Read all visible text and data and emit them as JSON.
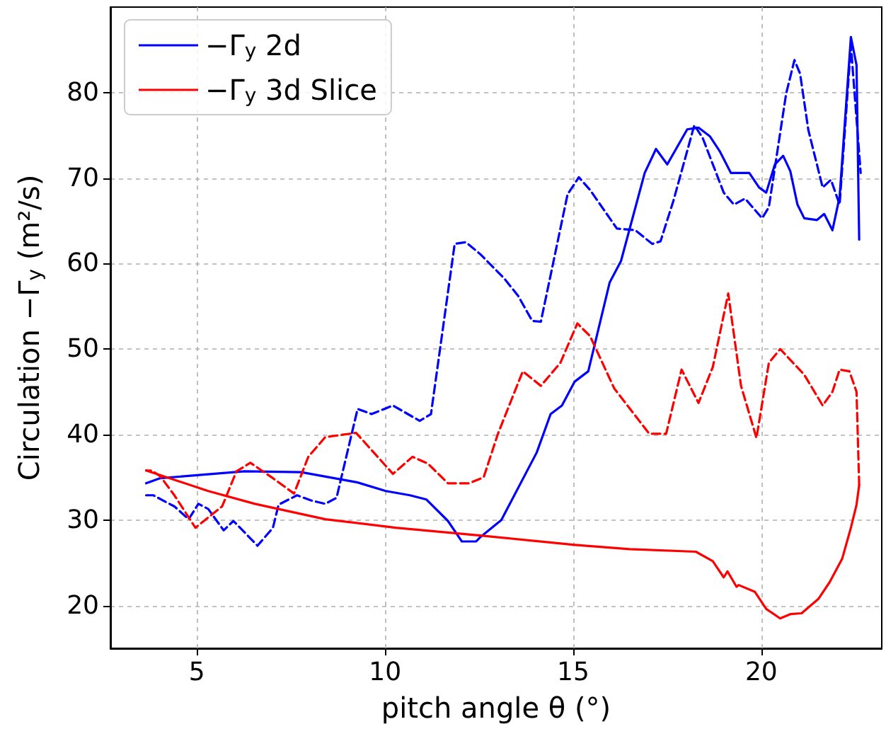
{
  "chart_data": {
    "type": "line",
    "xlabel": "pitch angle θ (°)",
    "ylabel": "Circulation −Γ$_{y}$ (m²/s)",
    "xlim": [
      2.7,
      23.2
    ],
    "ylim": [
      15,
      90
    ],
    "xticks": [
      5,
      10,
      15,
      20
    ],
    "yticks": [
      20,
      30,
      40,
      50,
      60,
      70,
      80
    ],
    "grid": true,
    "legend": "top left",
    "marker": "none",
    "line_style": "solid",
    "series": [
      {
        "name": "−Γ$_{y}$ 2d",
        "color": "#0000ff",
        "x": [
          3.65,
          4.03,
          6.27,
          7.77,
          9.27,
          10.02,
          10.66,
          11.1,
          11.67,
          12.04,
          12.42,
          12.53,
          13.09,
          14.03,
          14.4,
          14.7,
          15.04,
          15.4,
          15.97,
          16.27,
          16.9,
          17.2,
          17.5,
          18.03,
          18.33,
          18.63,
          18.9,
          19.19,
          19.68,
          19.94,
          20.13,
          20.36,
          20.58,
          20.77,
          20.96,
          21.14,
          21.48,
          21.67,
          21.89,
          22.08,
          22.38,
          22.53,
          22.6
        ],
        "values": [
          34.3,
          34.9,
          35.7,
          35.6,
          34.4,
          33.4,
          32.9,
          32.4,
          29.9,
          27.5,
          27.5,
          28,
          30,
          37.9,
          42.4,
          43.4,
          46.2,
          47.4,
          57.8,
          60.3,
          70.6,
          73.4,
          71.6,
          75.7,
          75.9,
          74.9,
          73.1,
          70.6,
          70.6,
          68.9,
          68.3,
          71.6,
          72.6,
          70.8,
          66.9,
          65.3,
          65.1,
          65.8,
          63.9,
          67.8,
          86.5,
          83.2,
          62.8
        ]
      },
      {
        "color": "#0000ff",
        "line_style": "dashed",
        "x": [
          3.65,
          3.84,
          4.18,
          4.4,
          4.78,
          5.04,
          5.3,
          5.71,
          5.97,
          6.61,
          7.02,
          7.17,
          7.66,
          8.03,
          8.41,
          8.71,
          9.27,
          9.64,
          10.21,
          10.92,
          11.22,
          11.85,
          12.15,
          12.53,
          13.16,
          13.54,
          13.91,
          14.14,
          14.85,
          15.15,
          15.45,
          16.16,
          16.65,
          17.1,
          17.32,
          17.66,
          18.22,
          18.44,
          19.0,
          19.27,
          19.57,
          20.02,
          20.2,
          20.66,
          20.88,
          21.03,
          21.25,
          21.63,
          21.85,
          22.08,
          22.38,
          22.64
        ],
        "values": [
          32.9,
          32.9,
          32.1,
          31.6,
          30.1,
          31.9,
          31.3,
          28.8,
          29.9,
          27,
          29.1,
          31.8,
          32.9,
          32.3,
          31.9,
          32.6,
          43,
          42.4,
          43.4,
          41.6,
          42.4,
          62.3,
          62.5,
          61.1,
          58.3,
          56.2,
          53.3,
          53.2,
          68.1,
          70.1,
          68.6,
          64.1,
          63.9,
          62.3,
          62.6,
          67.3,
          76.2,
          74.7,
          68.3,
          66.9,
          67.6,
          65.3,
          66.6,
          79.9,
          83.8,
          82.2,
          75.6,
          68.9,
          69.8,
          66.9,
          85.5,
          70.6
        ]
      },
      {
        "name": "−Γ$_{y}$ 3d Slice",
        "color": "#ff0000",
        "x": [
          3.65,
          5.3,
          6.54,
          8.41,
          10.28,
          12.53,
          15.04,
          16.5,
          18.26,
          18.71,
          19.0,
          19.1,
          19.34,
          19.4,
          19.83,
          20.13,
          20.5,
          20.77,
          21.07,
          21.52,
          21.81,
          22.15,
          22.38,
          22.53,
          22.6
        ],
        "values": [
          35.8,
          33.4,
          31.9,
          30.1,
          29.1,
          28.2,
          27.1,
          26.6,
          26.3,
          25.2,
          23.3,
          24,
          22.2,
          22.4,
          21.6,
          19.6,
          18.5,
          19,
          19.1,
          20.8,
          22.7,
          25.5,
          29.1,
          31.8,
          34.1
        ]
      },
      {
        "color": "#ff0000",
        "line_style": "dashed",
        "x": [
          22.6,
          22.53,
          22.34,
          22.08,
          21.89,
          21.63,
          21.14,
          20.5,
          20.2,
          19.87,
          19.46,
          19.12,
          18.71,
          18.33,
          17.88,
          17.47,
          17.02,
          16.09,
          15.45,
          15.11,
          14.66,
          14.14,
          13.66,
          13.0,
          12.62,
          12.23,
          11.67,
          11.14,
          10.73,
          10.21,
          9.23,
          8.41,
          7.96,
          7.58,
          7.02,
          6.42,
          6.05,
          5.67,
          4.96,
          4.4,
          4.03,
          3.8,
          3.65
        ],
        "values": [
          34.1,
          45,
          47.4,
          47.6,
          45,
          43.4,
          47,
          50,
          48.4,
          39.6,
          45.7,
          56.5,
          47.9,
          43.7,
          47.6,
          40.1,
          40.1,
          45.4,
          51.5,
          53,
          48.4,
          45.7,
          47.4,
          40.1,
          35,
          34.3,
          34.3,
          36.6,
          37.4,
          35.4,
          40.2,
          39.7,
          37.4,
          33.1,
          34.9,
          36.7,
          35.7,
          31.6,
          29.1,
          32.9,
          35.1,
          35.8,
          35.8
        ]
      }
    ]
  }
}
